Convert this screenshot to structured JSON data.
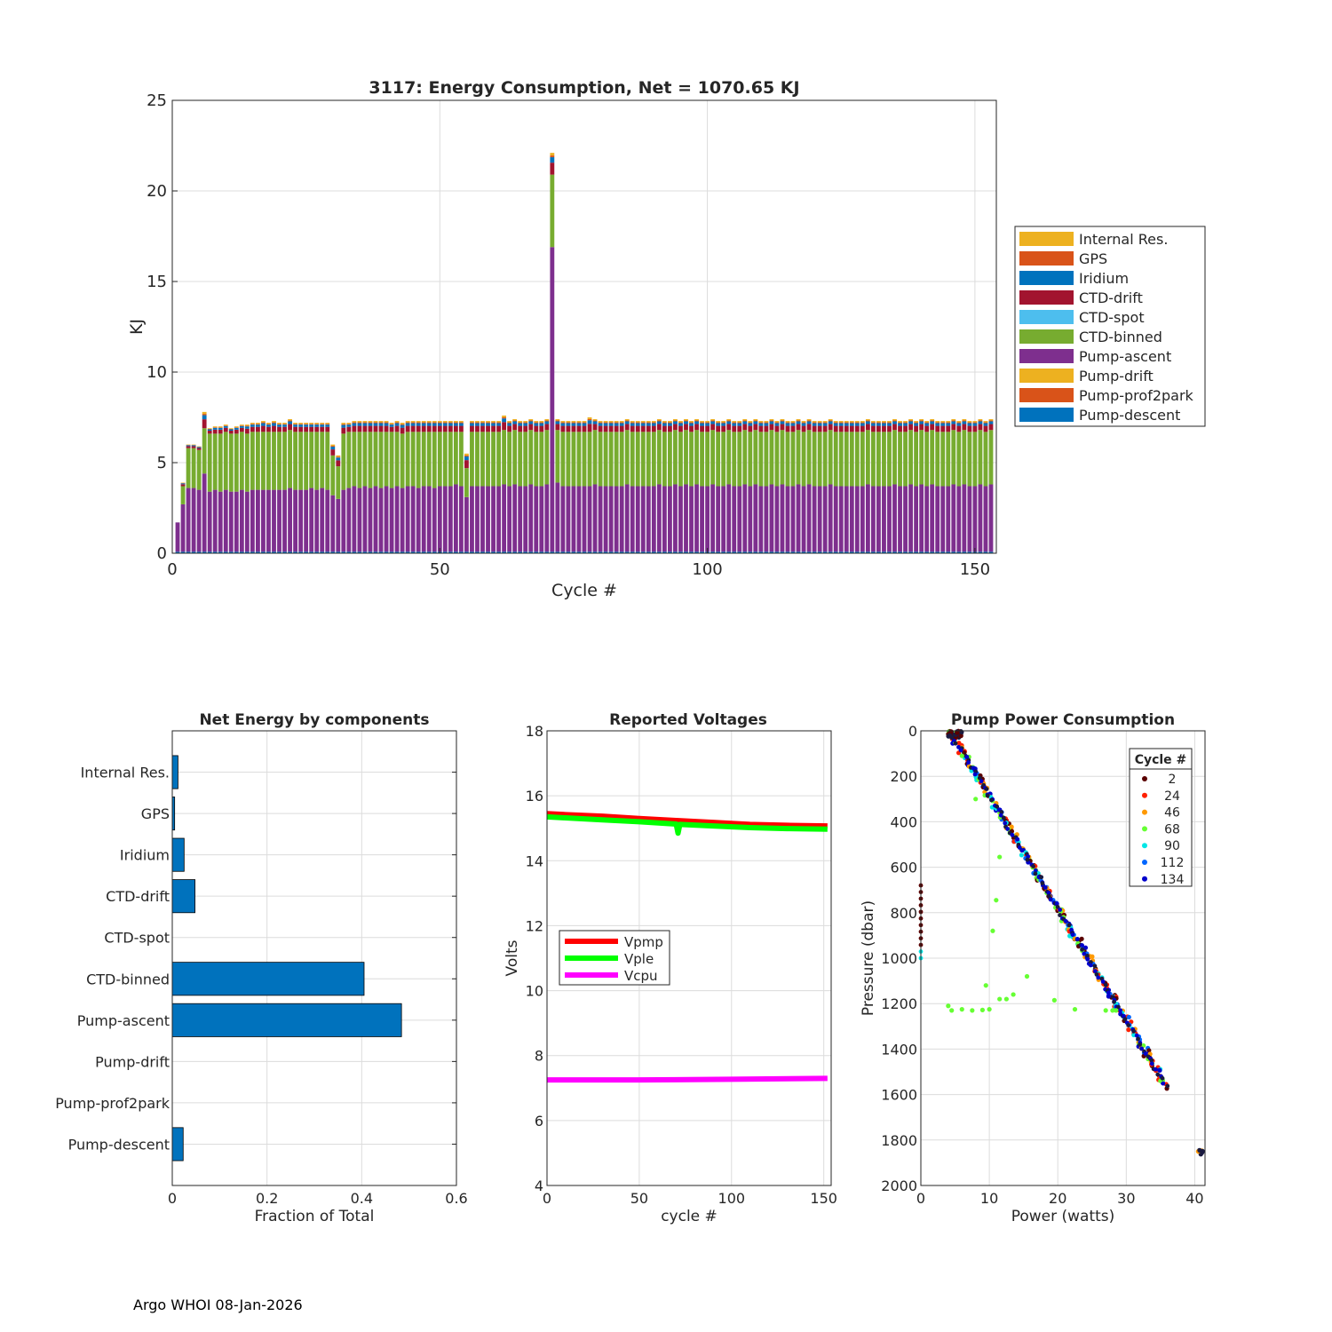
{
  "footer": "Argo WHOI 08-Jan-2026",
  "colors": {
    "Internal Res.": "#EDB120",
    "GPS": "#D95319",
    "Iridium": "#0072BD",
    "CTD-drift": "#A2142F",
    "CTD-spot": "#4DBEEE",
    "CTD-binned": "#77AC30",
    "Pump-ascent": "#7E2F8E",
    "Pump-drift": "#EDB120",
    "Pump-prof2park": "#D95319",
    "Pump-descent": "#0072BD",
    "grid": "#dcdcdc",
    "axis": "#262626",
    "bar_blue": "#0072BD"
  },
  "chart_data": [
    {
      "id": "energy",
      "type": "bar",
      "stacked": true,
      "title": "3117: Energy Consumption,  Net = 1070.65 KJ",
      "xlabel": "Cycle #",
      "ylabel": "KJ",
      "xlim": [
        0,
        154
      ],
      "ylim": [
        0,
        25
      ],
      "xticks": [
        0,
        50,
        100,
        150
      ],
      "yticks": [
        0,
        5,
        10,
        15,
        20,
        25
      ],
      "legend_position": "outside-right",
      "legend": [
        "Internal Res.",
        "GPS",
        "Iridium",
        "CTD-drift",
        "CTD-spot",
        "CTD-binned",
        "Pump-ascent",
        "Pump-drift",
        "Pump-prof2park",
        "Pump-descent"
      ],
      "stack_order": [
        "Pump-descent",
        "Pump-prof2park",
        "Pump-drift",
        "Pump-ascent",
        "CTD-binned",
        "CTD-spot",
        "CTD-drift",
        "Iridium",
        "GPS",
        "Internal Res."
      ],
      "typical_cycle": {
        "Pump-descent": 0.12,
        "Pump-prof2park": 0,
        "Pump-drift": 0,
        "Pump-ascent": 3.6,
        "CTD-binned": 3.0,
        "CTD-spot": 0,
        "CTD-drift": 0.35,
        "Iridium": 0.18,
        "GPS": 0.05,
        "Internal Res.": 0.08
      },
      "pump_ascent": [
        1.7,
        2.7,
        3.6,
        3.6,
        3.5,
        4.4,
        3.4,
        3.5,
        3.4,
        3.5,
        3.4,
        3.4,
        3.5,
        3.4,
        3.5,
        3.5,
        3.5,
        3.5,
        3.5,
        3.5,
        3.5,
        3.6,
        3.5,
        3.5,
        3.5,
        3.6,
        3.5,
        3.6,
        3.5,
        3.2,
        3.0,
        3.5,
        3.6,
        3.7,
        3.6,
        3.7,
        3.6,
        3.7,
        3.6,
        3.7,
        3.6,
        3.7,
        3.6,
        3.7,
        3.7,
        3.6,
        3.7,
        3.7,
        3.6,
        3.7,
        3.7,
        3.7,
        3.8,
        3.7,
        3.1,
        3.7,
        3.7,
        3.7,
        3.7,
        3.7,
        3.7,
        3.8,
        3.7,
        3.8,
        3.7,
        3.7,
        3.8,
        3.7,
        3.7,
        3.8,
        16.9,
        3.9,
        3.7,
        3.7,
        3.7,
        3.7,
        3.7,
        3.7,
        3.8,
        3.7,
        3.7,
        3.7,
        3.7,
        3.7,
        3.8,
        3.7,
        3.7,
        3.7,
        3.7,
        3.7,
        3.8,
        3.7,
        3.7,
        3.8,
        3.7,
        3.8,
        3.7,
        3.8,
        3.7,
        3.7,
        3.8,
        3.7,
        3.7,
        3.8,
        3.7,
        3.7,
        3.8,
        3.7,
        3.8,
        3.7,
        3.7,
        3.8,
        3.7,
        3.8,
        3.7,
        3.7,
        3.8,
        3.7,
        3.8,
        3.7,
        3.7,
        3.7,
        3.8,
        3.7,
        3.7,
        3.7,
        3.7,
        3.7,
        3.7,
        3.8,
        3.7,
        3.7,
        3.7,
        3.7,
        3.8,
        3.7,
        3.7,
        3.8,
        3.7,
        3.8,
        3.7,
        3.8,
        3.7,
        3.7,
        3.7,
        3.8,
        3.7,
        3.8,
        3.7,
        3.7,
        3.8,
        3.7,
        3.8
      ],
      "ctd_binned": [
        0.0,
        1.0,
        2.2,
        2.2,
        2.2,
        2.5,
        3.2,
        3.1,
        3.2,
        3.2,
        3.2,
        3.2,
        3.2,
        3.2,
        3.2,
        3.2,
        3.2,
        3.2,
        3.2,
        3.2,
        3.2,
        3.2,
        3.2,
        3.2,
        3.2,
        3.1,
        3.2,
        3.1,
        3.2,
        2.2,
        1.8,
        3.1,
        3.1,
        3.0,
        3.1,
        3.0,
        3.1,
        3.0,
        3.1,
        3.0,
        3.1,
        3.0,
        3.0,
        3.0,
        3.0,
        3.1,
        3.0,
        3.0,
        3.1,
        3.0,
        3.0,
        3.0,
        2.9,
        3.0,
        1.6,
        3.0,
        3.0,
        3.0,
        3.0,
        3.0,
        3.0,
        3.0,
        3.0,
        3.0,
        3.0,
        3.0,
        3.0,
        3.0,
        3.0,
        3.0,
        4.0,
        2.9,
        3.0,
        3.0,
        3.0,
        3.0,
        3.0,
        3.0,
        3.0,
        3.0,
        3.0,
        3.0,
        3.0,
        3.0,
        3.0,
        3.0,
        3.0,
        3.0,
        3.0,
        3.0,
        3.0,
        3.0,
        3.0,
        3.0,
        3.0,
        3.0,
        3.0,
        3.0,
        3.0,
        3.0,
        3.0,
        3.0,
        3.0,
        3.0,
        3.0,
        3.0,
        3.0,
        3.0,
        3.0,
        3.0,
        3.0,
        3.0,
        3.0,
        3.0,
        3.0,
        3.0,
        3.0,
        3.0,
        3.0,
        3.0,
        3.0,
        3.0,
        3.0,
        3.0,
        3.0,
        3.0,
        3.0,
        3.0,
        3.0,
        3.0,
        3.0,
        3.0,
        3.0,
        3.0,
        3.0,
        3.0,
        3.0,
        3.0,
        3.0,
        3.0,
        3.0,
        3.0,
        3.0,
        3.0,
        3.0,
        3.0,
        3.0,
        3.0,
        3.0,
        3.0,
        3.0,
        3.0,
        3.0
      ],
      "top_extra": [
        0.0,
        0.2,
        0.2,
        0.2,
        0.2,
        0.9,
        0.3,
        0.4,
        0.4,
        0.4,
        0.3,
        0.4,
        0.4,
        0.5,
        0.5,
        0.5,
        0.6,
        0.5,
        0.6,
        0.5,
        0.5,
        0.6,
        0.5,
        0.5,
        0.5,
        0.5,
        0.5,
        0.5,
        0.5,
        0.6,
        0.6,
        0.6,
        0.5,
        0.6,
        0.6,
        0.6,
        0.6,
        0.6,
        0.6,
        0.6,
        0.5,
        0.6,
        0.6,
        0.6,
        0.6,
        0.6,
        0.6,
        0.6,
        0.6,
        0.6,
        0.6,
        0.6,
        0.6,
        0.6,
        0.8,
        0.6,
        0.6,
        0.6,
        0.6,
        0.6,
        0.6,
        0.8,
        0.6,
        0.6,
        0.6,
        0.6,
        0.6,
        0.6,
        0.6,
        0.6,
        1.2,
        0.6,
        0.6,
        0.6,
        0.6,
        0.6,
        0.6,
        0.8,
        0.6,
        0.6,
        0.6,
        0.6,
        0.6,
        0.6,
        0.6,
        0.6,
        0.6,
        0.6,
        0.6,
        0.6,
        0.6,
        0.6,
        0.6,
        0.6,
        0.6,
        0.6,
        0.6,
        0.6,
        0.6,
        0.6,
        0.6,
        0.6,
        0.6,
        0.6,
        0.6,
        0.6,
        0.6,
        0.6,
        0.6,
        0.6,
        0.6,
        0.6,
        0.6,
        0.6,
        0.6,
        0.6,
        0.6,
        0.6,
        0.6,
        0.6,
        0.6,
        0.6,
        0.6,
        0.6,
        0.6,
        0.6,
        0.6,
        0.6,
        0.6,
        0.6,
        0.6,
        0.6,
        0.6,
        0.6,
        0.6,
        0.6,
        0.6,
        0.6,
        0.6,
        0.6,
        0.6,
        0.6,
        0.6,
        0.6,
        0.6,
        0.6,
        0.6,
        0.6,
        0.6,
        0.6,
        0.6,
        0.6,
        0.6
      ]
    },
    {
      "id": "net",
      "type": "bar",
      "orientation": "horizontal",
      "title": "Net Energy by components",
      "xlabel": "Fraction of Total",
      "ylabel": "",
      "xlim": [
        0,
        0.6
      ],
      "xticks": [
        0,
        0.2,
        0.4,
        0.6
      ],
      "xtick_labels": [
        "0",
        "0.2",
        "0.4",
        "0.6"
      ],
      "categories": [
        "Internal Res.",
        "GPS",
        "Iridium",
        "CTD-drift",
        "CTD-spot",
        "CTD-binned",
        "Pump-ascent",
        "Pump-drift",
        "Pump-prof2park",
        "Pump-descent"
      ],
      "values": [
        0.012,
        0.005,
        0.025,
        0.048,
        0.0,
        0.405,
        0.484,
        0.0,
        0.0,
        0.023
      ]
    },
    {
      "id": "volts",
      "type": "line",
      "title": "Reported Voltages",
      "xlabel": "cycle #",
      "ylabel": "Volts",
      "xlim": [
        0,
        154
      ],
      "ylim": [
        4,
        18
      ],
      "xticks": [
        0,
        50,
        100,
        150
      ],
      "yticks": [
        4,
        6,
        8,
        10,
        12,
        14,
        16,
        18
      ],
      "legend_position": "center-left",
      "series": [
        {
          "name": "Vpmp",
          "color": "#ff0000",
          "x": [
            0,
            10,
            30,
            50,
            70,
            90,
            110,
            130,
            152
          ],
          "values": [
            15.45,
            15.42,
            15.37,
            15.3,
            15.24,
            15.18,
            15.12,
            15.09,
            15.07
          ]
        },
        {
          "name": "Vple",
          "color": "#00ff00",
          "x": [
            0,
            10,
            30,
            50,
            70,
            71,
            72,
            90,
            110,
            130,
            152
          ],
          "values": [
            15.35,
            15.32,
            15.26,
            15.2,
            15.13,
            14.85,
            15.12,
            15.07,
            15.02,
            14.99,
            14.97
          ]
        },
        {
          "name": "Vcpu",
          "color": "#ff00ff",
          "x": [
            0,
            50,
            100,
            152
          ],
          "values": [
            7.25,
            7.25,
            7.27,
            7.3
          ]
        }
      ]
    },
    {
      "id": "pump",
      "type": "scatter",
      "title": "Pump Power Consumption",
      "xlabel": "Power (watts)",
      "ylabel": "Pressure (dbar)",
      "xlim": [
        0,
        41.5
      ],
      "ylim": [
        0,
        2000
      ],
      "y_reversed": true,
      "xticks": [
        0,
        10,
        20,
        30,
        40
      ],
      "yticks": [
        0,
        200,
        400,
        600,
        800,
        1000,
        1200,
        1400,
        1600,
        1800,
        2000
      ],
      "legend_title": "Cycle #",
      "legend_position": "top-right",
      "series": [
        {
          "name": "2",
          "color": "#5a0000"
        },
        {
          "name": "24",
          "color": "#ff2000"
        },
        {
          "name": "46",
          "color": "#ff9900"
        },
        {
          "name": "68",
          "color": "#66ff33"
        },
        {
          "name": "90",
          "color": "#00e6e6"
        },
        {
          "name": "112",
          "color": "#0066ff"
        },
        {
          "name": "134",
          "color": "#0000cc"
        }
      ],
      "main_line": {
        "x": [
          4.2,
          35.8
        ],
        "y": [
          0,
          1560
        ]
      },
      "cluster_left_x": 0,
      "cluster_left_y": [
        680,
        1000
      ],
      "cluster_bottom": {
        "x": 40.8,
        "y": 1855
      },
      "outliers_68": [
        [
          4,
          1210
        ],
        [
          4.5,
          1230
        ],
        [
          6,
          1225
        ],
        [
          7.5,
          1230
        ],
        [
          9,
          1228
        ],
        [
          10,
          1225
        ],
        [
          9.5,
          1120
        ],
        [
          11.5,
          1180
        ],
        [
          12.5,
          1180
        ],
        [
          13.5,
          1160
        ],
        [
          15.5,
          1080
        ],
        [
          19.5,
          1185
        ],
        [
          22.5,
          1225
        ],
        [
          27,
          1230
        ],
        [
          28,
          1230
        ],
        [
          10.5,
          880
        ],
        [
          11,
          745
        ],
        [
          11.5,
          555
        ],
        [
          8,
          300
        ],
        [
          6,
          110
        ],
        [
          28.5,
          1230
        ]
      ]
    }
  ]
}
